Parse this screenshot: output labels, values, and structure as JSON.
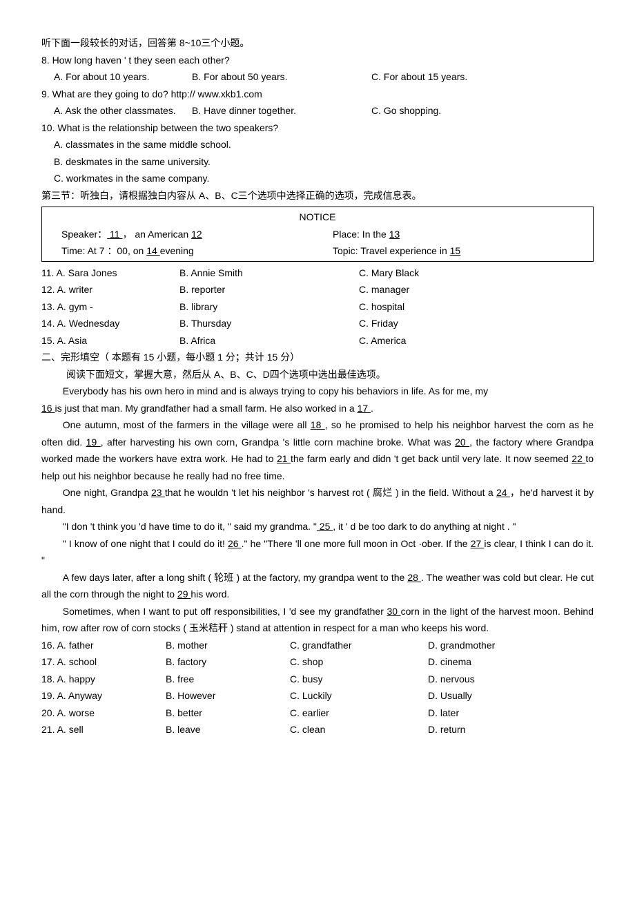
{
  "intro_line": "听下面一段较长的对话，回答第    8~10三个小题。",
  "q8": {
    "stem": "8. How long haven    ' t they seen each other?",
    "A": "A. For about 10 years.",
    "B": "B. For about 50 years.",
    "C": "C. For about 15 years."
  },
  "q9": {
    "stem": "9. What are they going to do? http:// www.xkb1.com",
    "A": "A. Ask the other classmates.",
    "B": "B. Have dinner together.",
    "C": "C. Go shopping."
  },
  "q10": {
    "stem": "10. What is the relationship between the two speakers?",
    "A": "A. classmates in the same middle school.",
    "B": "B. deskmates in the same university.",
    "C": "C. workmates in the same company."
  },
  "section3_title": "第三节：听独白，请根据独白内容从     A、B、C三个选项中选择正确的选项，完成信息表。",
  "notice": {
    "title": "NOTICE",
    "speaker_pre": "Speaker：",
    "blank11": "   11   ",
    "speaker_mid": "，  an American ",
    "blank12": "   12    ",
    "place_pre": "Place: In the ",
    "blank13": "   13   ",
    "time_pre": "Time: At 7 ：00, on ",
    "blank14": "   14    ",
    "time_post": " evening",
    "topic_pre": "Topic: Travel experience in ",
    "blank15": "    15    "
  },
  "q11": {
    "stem": "11. A. Sara Jones",
    "B": "B. Annie Smith",
    "C": "C. Mary Black"
  },
  "q12": {
    "stem": "12. A. writer",
    "B": "B. reporter",
    "C": "C. manager"
  },
  "q13": {
    "stem": "13. A. gym      -",
    "B": "B. library",
    "C": "C. hospital"
  },
  "q14": {
    "stem": "14. A. Wednesday",
    "B": "B. Thursday",
    "C": "C. Friday"
  },
  "q15": {
    "stem": "15. A. Asia",
    "B": "B. Africa",
    "C": "C. America"
  },
  "part2_title": "二、完形填空（ 本题有 15 小题，每小题 1 分；共计 15 分）",
  "part2_instr": "阅读下面短文，掌握大意，然后从     A、B、C、D四个选项中选出最佳选项。",
  "p1a": "Everybody has his own hero in mind and is always trying to copy his behaviors in life. As for me, my ",
  "b16": "  16   ",
  "p1b": " is just that man. My grandfather had a small farm. He also worked in a    ",
  "b17": "  17   ",
  "p1c": ".",
  "p2a": "One autumn, most of the farmers in the village were all     ",
  "b18": "   18   ",
  "p2b": ", so he promised to help his neighbor harvest the corn as he often did. ",
  "b19": "  19   ",
  "p2c": ", after harvesting his own corn, Grandpa 's little corn machine broke. What was   ",
  "b20": "  20   ",
  "p2d": ", the factory where Grandpa worked made the workers have extra work. He had to ",
  "b21": "  21   ",
  "p2e": " the farm early and didn 't get back until very late. It now seemed     ",
  "b22": "  22   ",
  "p2f": " to help out his neighbor because he really had no free time.",
  "p3a": "One night, Grandpa ",
  "b23": "  23   ",
  "p3b": " that he wouldn 't let his neighbor 's harvest rot ( 腐烂 ) in the field. Without a   ",
  "b24": "  24    ",
  "p3c": "，he'd harvest it by hand.",
  "p4a": "\"I don 't think you 'd have time to do it, \" said my grandma.   \"",
  "b25": "  25   ",
  "p4b": ", it    ' d be too dark to do anything at night . \"",
  "p5a": "\" I know of one night that I could do it!         ",
  "b26": "   26    ",
  "p5b": " .\" he \"There 'll one more full moon in Oct ·ober. If the  ",
  "b27": "  27   ",
  "p5c": " is clear, I think I can do it.                \"",
  "p6a": "A few days later, after a long shift (  轮班 ) at the factory, my grandpa went to the   ",
  "b28": "  28   ",
  "p6b": ". The weather was cold but clear. He cut all the corn through the night to    ",
  "b29": "  29    ",
  "p6c": " his word.",
  "p7a": "Sometimes, when I want to put off responsibilities, I   'd see my grandfather   ",
  "b30": "  30    ",
  "p7b": " corn in the light of the harvest moon. Behind him, row after row of corn stocks (   玉米秸秆 ) stand at attention in respect for a man who keeps his word.",
  "opt16": {
    "A": "16. A. father",
    "B": "B. mother",
    "C": "C. grandfather",
    "D": "D. grandmother"
  },
  "opt17": {
    "A": "17. A. school",
    "B": "B. factory",
    "C": "C. shop",
    "D": "D. cinema"
  },
  "opt18": {
    "A": "18. A. happy",
    "B": "B. free",
    "C": "C. busy",
    "D": "D. nervous"
  },
  "opt19": {
    "A": "19. A. Anyway",
    "B": "B. However",
    "C": "C. Luckily",
    "D": "D. Usually"
  },
  "opt20": {
    "A": "20. A. worse",
    "B": "B. better",
    "C": "C. earlier",
    "D": "D. later"
  },
  "opt21": {
    "A": "21. A. sell",
    "B": "B. leave",
    "C": "C. clean",
    "D": "D. return"
  }
}
